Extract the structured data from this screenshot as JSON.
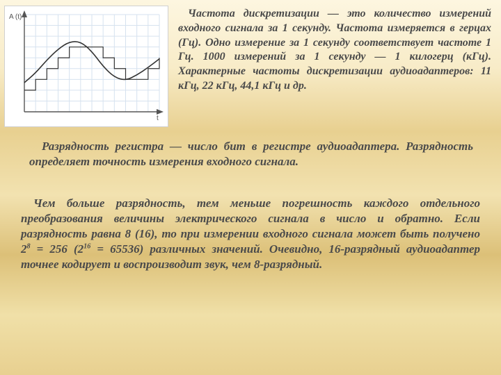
{
  "chart": {
    "type": "line",
    "ylabel": "A (t)",
    "xlabel": "t",
    "label_fontsize": 10,
    "label_color": "#555555",
    "background_color": "#ffffff",
    "grid_color": "#d6e2ef",
    "axis_color": "#555555",
    "grid_rows": 9,
    "grid_cols": 12,
    "signal_color": "#333333",
    "step_color": "#333333",
    "signal_width": 1.6,
    "step_width": 1.2,
    "x_values": [
      0,
      1,
      2,
      3,
      4,
      5,
      6,
      7,
      8,
      9,
      10,
      11,
      12
    ],
    "signal_y": [
      2.7,
      3.6,
      4.8,
      5.8,
      6.5,
      6.5,
      5.6,
      4.2,
      3.2,
      2.9,
      3.4,
      4.1,
      4.9
    ],
    "step_y": [
      2,
      3,
      4,
      5,
      6,
      6,
      6,
      5,
      4,
      3,
      3,
      4,
      5
    ]
  },
  "text": {
    "p1_a": "Частота дискретизации — это количество измерений входного сигнала за 1 секунду. Частота измеряется в герцах (Гц). Одно измерение за 1 секунду соответствует частоте 1 Гц. 1000 измерений за 1 секунду — 1 килогерц (кГц). Характерные частоты дискретизации аудиоадаптеров: 11 кГц, 22 кГц, 44,1 кГц и др.",
    "p2_a": "Разрядность регистра — число бит в регистре аудиоадаптера. Разрядность определяет точность измерения входного сигнала.",
    "p3_a": "Чем больше разрядность, тем меньше погрешность каждого отдельного преобразования величины электрического сигнала в число и обратно. Если разрядность равна 8 (16), то при измерении входного сигнала может быть получено 2",
    "p3_sup1": "8",
    "p3_b": " = 256 (2",
    "p3_sup2": "16",
    "p3_c": " = 65536) различных значений. Очевидно, 16-разрядный аудиоадаптер точнее кодирует и воспроизводит звук, чем 8-разрядный."
  },
  "style": {
    "text_color": "#4a4a4a",
    "p1_fontsize": 16,
    "p2_fontsize": 17,
    "p3_fontsize": 17
  }
}
